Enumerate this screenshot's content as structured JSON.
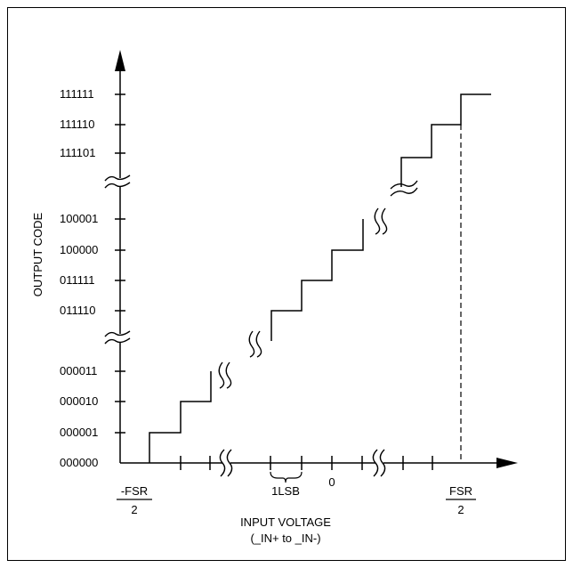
{
  "figure": {
    "y_axis_title": "OUTPUT CODE",
    "x_axis_title_line1": "INPUT VOLTAGE",
    "x_axis_title_line2": "(_IN+ to _IN-)",
    "y_codes": [
      "000000",
      "000001",
      "000010",
      "000011",
      "011110",
      "011111",
      "100000",
      "100001",
      "111101",
      "111110",
      "111111"
    ],
    "x_labels": {
      "neg_fsr_num": "-FSR",
      "neg_fsr_den": "2",
      "lsb": "1LSB",
      "zero": "0",
      "pos_fsr_num": "FSR",
      "pos_fsr_den": "2"
    },
    "colors": {
      "stroke": "#000000",
      "background": "#ffffff"
    }
  }
}
